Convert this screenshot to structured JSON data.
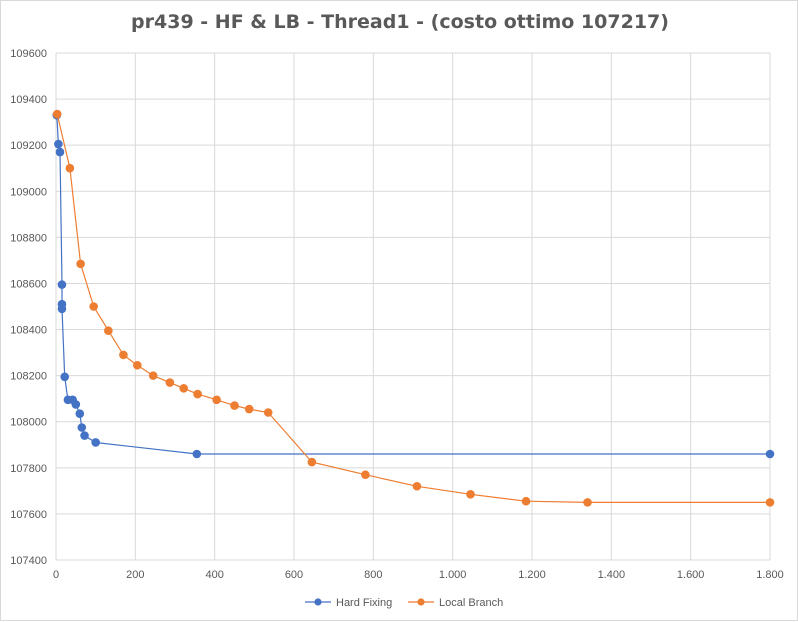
{
  "chart_data": {
    "type": "scatter",
    "title": "pr439 - HF & LB - Thread1 - (costo ottimo  107217)",
    "xlim": [
      0,
      1800
    ],
    "ylim": [
      107400,
      109600
    ],
    "x_ticks": [
      0,
      200,
      400,
      600,
      800,
      1000,
      1200,
      1400,
      1600,
      1800
    ],
    "x_tick_labels": [
      "0",
      "200",
      "400",
      "600",
      "800",
      "1.000",
      "1.200",
      "1.400",
      "1.600",
      "1.800"
    ],
    "y_ticks": [
      107400,
      107600,
      107800,
      108000,
      108200,
      108400,
      108600,
      108800,
      109000,
      109200,
      109400,
      109600
    ],
    "y_tick_labels": [
      "107400",
      "107600",
      "107800",
      "108000",
      "108200",
      "108400",
      "108600",
      "108800",
      "109000",
      "109200",
      "109400",
      "109600"
    ],
    "grid": true,
    "legend_position": "bottom",
    "series": [
      {
        "name": "Hard Fixing",
        "color": "#4472c4",
        "points": [
          [
            2,
            109330
          ],
          [
            6,
            109205
          ],
          [
            10,
            109170
          ],
          [
            15,
            108595
          ],
          [
            15,
            108510
          ],
          [
            15,
            108490
          ],
          [
            22,
            108195
          ],
          [
            30,
            108095
          ],
          [
            42,
            108095
          ],
          [
            50,
            108075
          ],
          [
            60,
            108035
          ],
          [
            65,
            107975
          ],
          [
            72,
            107940
          ],
          [
            100,
            107910
          ],
          [
            355,
            107860
          ],
          [
            1800,
            107860
          ]
        ]
      },
      {
        "name": "Local Branch",
        "color": "#ed7d31",
        "points": [
          [
            3,
            109335
          ],
          [
            35,
            109100
          ],
          [
            62,
            108685
          ],
          [
            95,
            108500
          ],
          [
            132,
            108395
          ],
          [
            170,
            108290
          ],
          [
            205,
            108245
          ],
          [
            245,
            108200
          ],
          [
            287,
            108170
          ],
          [
            322,
            108145
          ],
          [
            357,
            108120
          ],
          [
            405,
            108095
          ],
          [
            450,
            108070
          ],
          [
            487,
            108055
          ],
          [
            535,
            108040
          ],
          [
            645,
            107825
          ],
          [
            780,
            107770
          ],
          [
            910,
            107720
          ],
          [
            1045,
            107685
          ],
          [
            1185,
            107655
          ],
          [
            1340,
            107650
          ],
          [
            1800,
            107650
          ]
        ]
      }
    ]
  }
}
